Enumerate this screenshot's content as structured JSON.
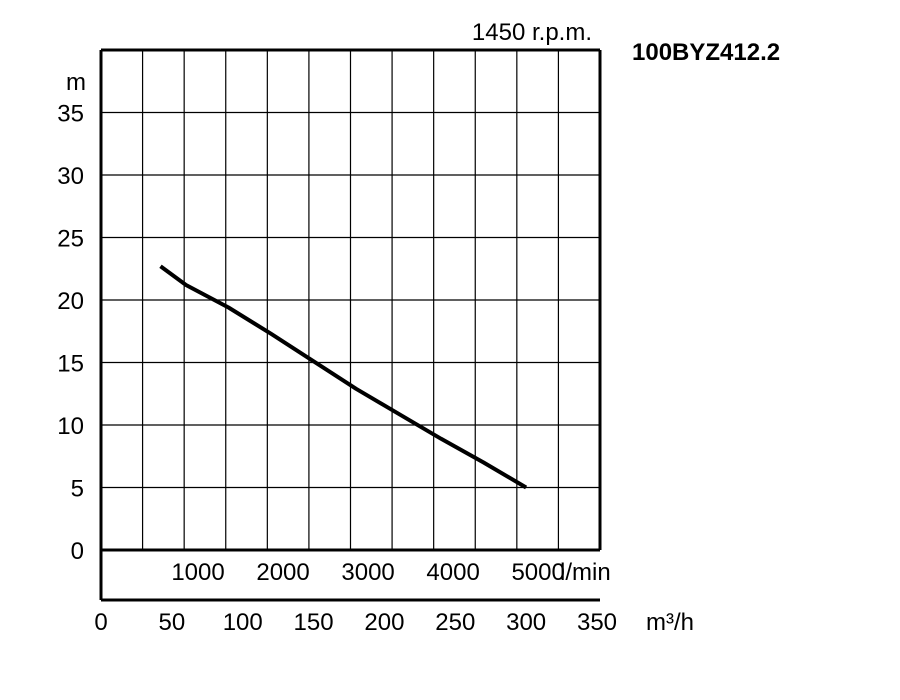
{
  "chart_data": {
    "type": "line",
    "model": "100BYZ412.2",
    "speed_label": "1450 r.p.m.",
    "ylabel": "m",
    "y_ticks": [
      "0",
      "5",
      "10",
      "15",
      "20",
      "25",
      "30",
      "35"
    ],
    "ylim": [
      0,
      40
    ],
    "x_unit_flow_lmin": "l/min",
    "x_ticks_lmin": [
      {
        "label": "1000",
        "value": 1000
      },
      {
        "label": "2000",
        "value": 2000
      },
      {
        "label": "3000",
        "value": 3000
      },
      {
        "label": "4000",
        "value": 4000
      },
      {
        "label": "5000",
        "value": 5000
      }
    ],
    "x_unit_flow_m3h": "m³/h",
    "x_ticks_m3h": [
      {
        "label": "0",
        "value": 0
      },
      {
        "label": "50",
        "value": 50
      },
      {
        "label": "100",
        "value": 100
      },
      {
        "label": "150",
        "value": 150
      },
      {
        "label": "200",
        "value": 200
      },
      {
        "label": "250",
        "value": 250
      },
      {
        "label": "300",
        "value": 300
      },
      {
        "label": "350",
        "value": 350
      }
    ],
    "xlim_m3h": [
      0,
      360
    ],
    "grid": true,
    "series": [
      {
        "x": [
          42,
          60,
          90,
          120,
          150,
          180,
          210,
          240,
          270,
          300
        ],
        "y": [
          22.7,
          21.2,
          19.4,
          17.3,
          15.1,
          12.9,
          10.9,
          8.9,
          7.0,
          5.0
        ]
      }
    ]
  }
}
